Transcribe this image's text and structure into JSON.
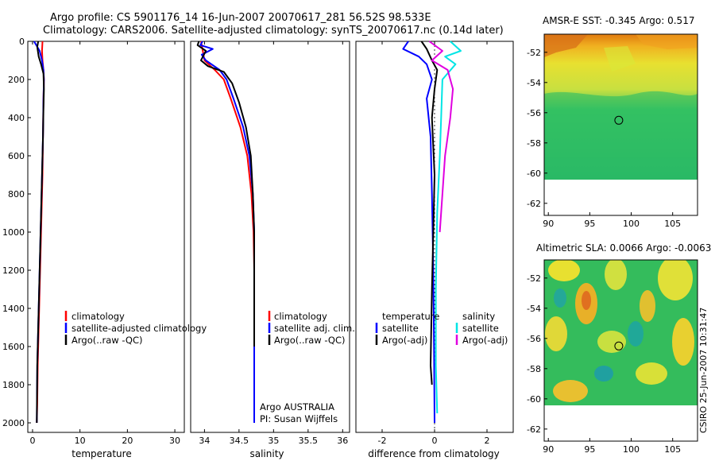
{
  "figure": {
    "title_line1": "Argo profile: CS 5901176_14 16-Jun-2007 20070617_281 56.52S 98.533E",
    "title_line2": "Climatology: CARS2006. Satellite-adjusted climatology: synTS_20070617.nc (0.14d later)",
    "credit": "CSIRO 25-Jun-2007 10:31:47",
    "colors": {
      "climatology": "#ff0000",
      "satellite": "#0000ff",
      "argo": "#000000",
      "sat_salinity": "#00e5e5",
      "argo_adj_salinity": "#e000e0"
    }
  },
  "chart_data": [
    {
      "type": "line",
      "id": "temperature",
      "xlabel": "temperature",
      "xlim": [
        -1,
        32
      ],
      "ylim": [
        0,
        2050
      ],
      "y_inverted": true,
      "xticks": [
        0,
        10,
        20,
        30
      ],
      "yticks": [
        0,
        200,
        400,
        600,
        800,
        1000,
        1200,
        1400,
        1600,
        1800,
        2000
      ],
      "legend": {
        "position": "lower-right",
        "entries": [
          "climatology",
          "satellite-adjusted climatology",
          "Argo(..raw -QC)"
        ]
      },
      "series": [
        {
          "name": "climatology",
          "color": "#ff0000",
          "x": [
            2.1,
            2.0,
            2.1,
            2.3,
            2.4,
            2.3,
            2.2,
            2.1,
            1.9,
            1.7,
            1.5,
            1.3,
            1.1,
            1.0,
            0.9
          ],
          "y": [
            0,
            50,
            100,
            150,
            200,
            300,
            500,
            700,
            900,
            1100,
            1300,
            1500,
            1700,
            1900,
            2000
          ]
        },
        {
          "name": "satellite-adjusted climatology",
          "color": "#0000ff",
          "x": [
            0.3,
            0.8,
            1.5,
            2.0,
            2.3,
            2.4,
            2.3,
            2.2,
            2.0,
            1.8,
            1.6,
            1.4,
            1.2,
            1.0,
            0.9
          ],
          "y": [
            0,
            20,
            50,
            100,
            150,
            200,
            300,
            500,
            700,
            900,
            1100,
            1300,
            1500,
            1700,
            2000
          ]
        },
        {
          "name": "Argo(..raw -QC)",
          "color": "#000000",
          "x": [
            1.2,
            1.0,
            1.3,
            1.8,
            2.3,
            2.4,
            2.3,
            2.2,
            2.0,
            1.8,
            1.6,
            1.4,
            1.2,
            1.0,
            0.9
          ],
          "y": [
            0,
            30,
            80,
            120,
            170,
            250,
            350,
            500,
            700,
            900,
            1100,
            1300,
            1500,
            1700,
            2000
          ]
        }
      ]
    },
    {
      "type": "line",
      "id": "salinity",
      "xlabel": "salinity",
      "xlim": [
        33.8,
        36.1
      ],
      "ylim": [
        0,
        2050
      ],
      "y_inverted": true,
      "xticks": [
        34,
        34.5,
        35,
        35.5,
        36
      ],
      "legend": {
        "position": "lower-right",
        "entries": [
          "climatology",
          "satellite adj. clim.",
          "Argo(..raw -QC)"
        ]
      },
      "annotations": [
        "Argo AUSTRALIA",
        "PI: Susan Wijffels"
      ],
      "series": [
        {
          "name": "climatology",
          "color": "#ff0000",
          "x": [
            33.95,
            33.98,
            34.0,
            34.15,
            34.28,
            34.38,
            34.52,
            34.62,
            34.68,
            34.71,
            34.72,
            34.72,
            34.72,
            34.72
          ],
          "y": [
            0,
            60,
            100,
            150,
            200,
            300,
            450,
            600,
            800,
            1000,
            1200,
            1500,
            1800,
            2000
          ]
        },
        {
          "name": "satellite adj. clim.",
          "color": "#0000ff",
          "x": [
            33.97,
            33.94,
            34.12,
            33.96,
            34.02,
            34.22,
            34.32,
            34.42,
            34.56,
            34.65,
            34.7,
            34.72,
            34.72,
            34.72,
            34.72
          ],
          "y": [
            0,
            20,
            40,
            70,
            100,
            150,
            200,
            300,
            450,
            600,
            800,
            1000,
            1200,
            1600,
            2000
          ]
        },
        {
          "name": "Argo(..raw -QC)",
          "color": "#000000",
          "x": [
            33.92,
            33.9,
            34.02,
            33.95,
            34.05,
            34.28,
            34.4,
            34.5,
            34.6,
            34.67,
            34.7,
            34.72,
            34.72,
            34.72
          ],
          "y": [
            0,
            20,
            50,
            100,
            130,
            160,
            220,
            320,
            450,
            600,
            800,
            1000,
            1200,
            1600
          ]
        }
      ]
    },
    {
      "type": "line",
      "id": "difference",
      "xlabel": "difference from climatology",
      "xlim": [
        -3.0,
        3.0
      ],
      "ylim": [
        0,
        2050
      ],
      "y_inverted": true,
      "xticks": [
        -2,
        0,
        2
      ],
      "legend": {
        "position": "lower-right",
        "entries": [
          "temperature",
          "satellite",
          "Argo(-adj)",
          "salinity",
          "satellite",
          "Argo(-adj)"
        ]
      },
      "series": [
        {
          "name": "temperature satellite",
          "color": "#0000ff",
          "x": [
            -1.0,
            -1.2,
            -0.6,
            -0.3,
            -0.1,
            -0.3,
            -0.15,
            -0.1,
            -0.05,
            -0.02,
            0.0
          ],
          "y": [
            0,
            40,
            80,
            120,
            200,
            300,
            500,
            800,
            1200,
            1600,
            2000
          ]
        },
        {
          "name": "temperature Argo(-adj)",
          "color": "#000000",
          "x": [
            -0.5,
            -0.3,
            -0.1,
            0.1,
            0.0,
            -0.1,
            0.0,
            -0.05,
            -0.1,
            -0.15,
            -0.1
          ],
          "y": [
            0,
            40,
            100,
            150,
            250,
            400,
            700,
            1000,
            1300,
            1700,
            1800
          ]
        },
        {
          "name": "salinity satellite",
          "color": "#00e5e5",
          "x": [
            0.6,
            1.0,
            0.4,
            0.8,
            0.3,
            0.25,
            0.2,
            0.1,
            0.05,
            0.05,
            0.1
          ],
          "y": [
            0,
            50,
            80,
            120,
            200,
            400,
            600,
            900,
            1300,
            1700,
            1950
          ]
        },
        {
          "name": "salinity Argo(-adj)",
          "color": "#e000e0",
          "x": [
            -0.2,
            0.3,
            -0.1,
            0.5,
            0.7,
            0.6,
            0.4,
            0.3,
            0.2
          ],
          "y": [
            0,
            50,
            100,
            150,
            250,
            400,
            600,
            800,
            1000
          ]
        }
      ]
    },
    {
      "type": "heatmap",
      "id": "sst_map",
      "title": "AMSR-E SST: -0.345 Argo: 0.517",
      "xlim": [
        89.5,
        108
      ],
      "ylim": [
        -62.8,
        -50.8
      ],
      "xticks": [
        90,
        95,
        100,
        105
      ],
      "yticks": [
        -52,
        -54,
        -56,
        -58,
        -60,
        -62
      ],
      "data_extent": {
        "lon": [
          89.5,
          108
        ],
        "lat": [
          -60,
          -50.8
        ]
      },
      "argo_position": {
        "lon": 98.5,
        "lat": -56.5
      }
    },
    {
      "type": "heatmap",
      "id": "sla_map",
      "title": "Altimetric SLA: 0.0066 Argo: -0.0063",
      "xlim": [
        89.5,
        108
      ],
      "ylim": [
        -62.8,
        -50.8
      ],
      "xticks": [
        90,
        95,
        100,
        105
      ],
      "yticks": [
        -52,
        -54,
        -56,
        -58,
        -60,
        -62
      ],
      "data_extent": {
        "lon": [
          89.5,
          108
        ],
        "lat": [
          -60,
          -50.8
        ]
      },
      "argo_position": {
        "lon": 98.5,
        "lat": -56.5
      }
    }
  ]
}
